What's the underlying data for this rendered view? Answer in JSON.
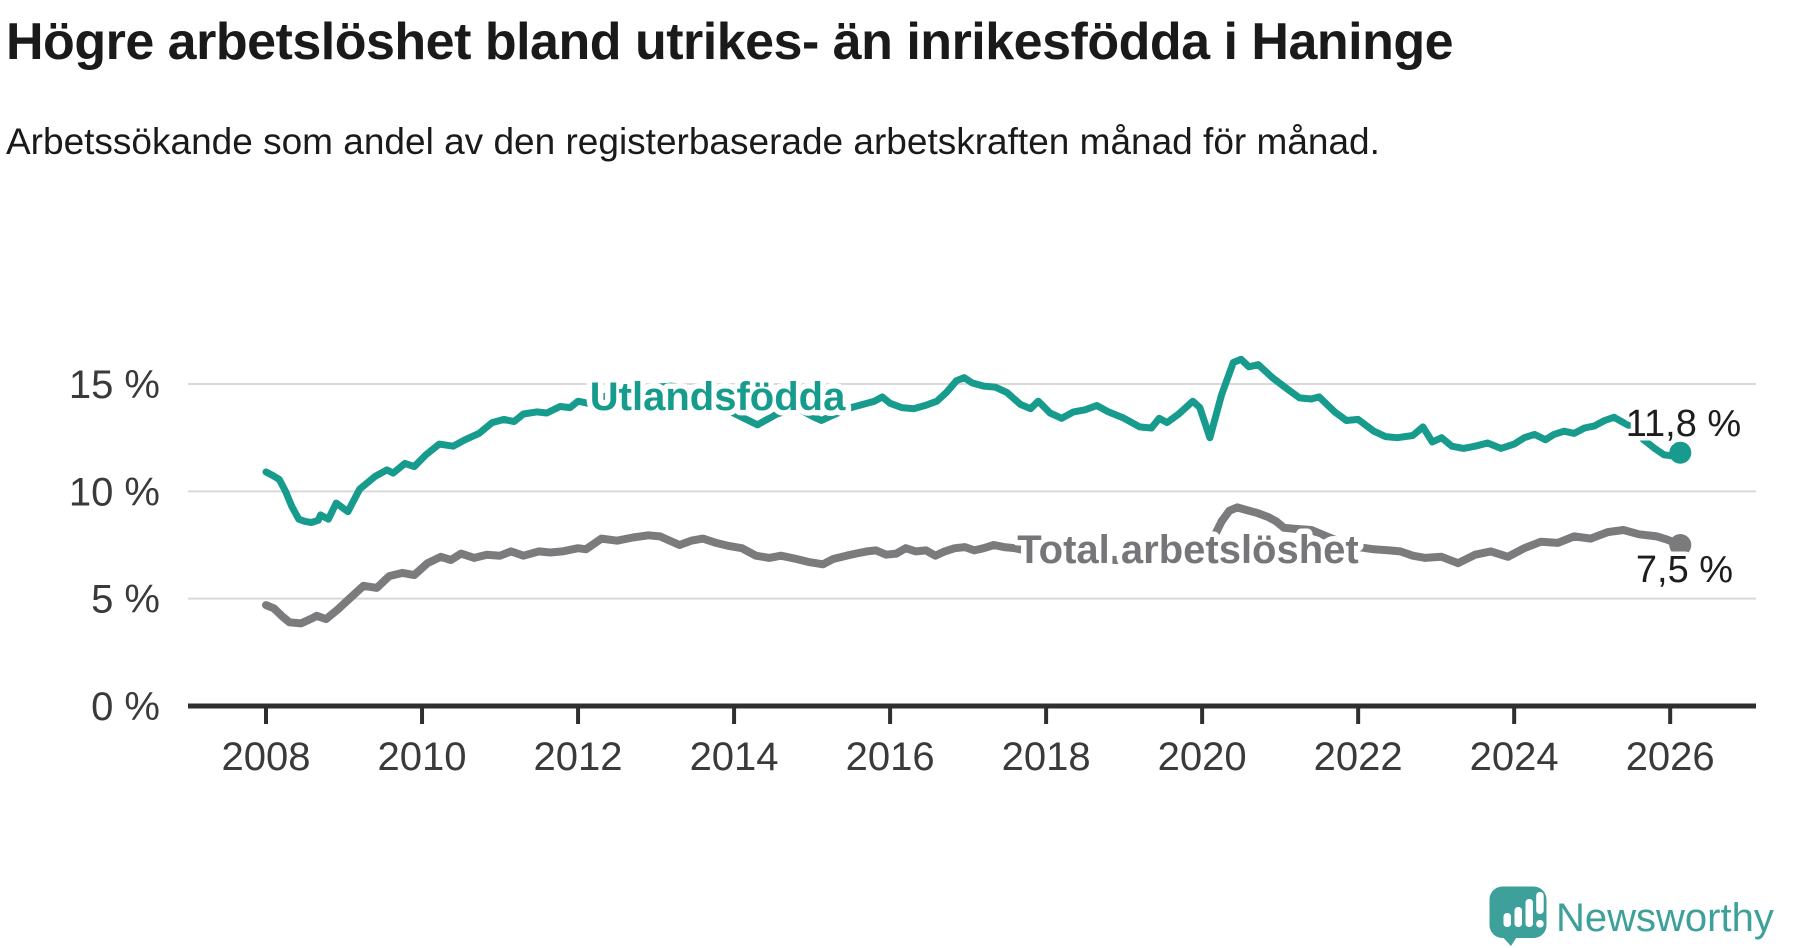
{
  "header": {
    "title": "Högre arbetslöshet bland utrikes- än inrikesfödda i Haninge",
    "subtitle": "Arbetssökande som andel av den registerbaserade arbetskraften månad för månad."
  },
  "chart_data": {
    "type": "line",
    "title": "Högre arbetslöshet bland utrikes- än inrikesfödda i Haninge",
    "subtitle": "Arbetssökande som andel av den registerbaserade arbetskraften månad för månad.",
    "unit": "%",
    "grid": true,
    "legend_position": "inline-labels",
    "xlim": [
      2007.0,
      2027.1
    ],
    "ylim": [
      0,
      17.5
    ],
    "x_ticks": [
      {
        "value": 2008,
        "label": "2008"
      },
      {
        "value": 2010,
        "label": "2010"
      },
      {
        "value": 2012,
        "label": "2012"
      },
      {
        "value": 2014,
        "label": "2014"
      },
      {
        "value": 2016,
        "label": "2016"
      },
      {
        "value": 2018,
        "label": "2018"
      },
      {
        "value": 2020,
        "label": "2020"
      },
      {
        "value": 2022,
        "label": "2022"
      },
      {
        "value": 2024,
        "label": "2024"
      },
      {
        "value": 2026,
        "label": "2026"
      }
    ],
    "y_ticks": [
      {
        "value": 0,
        "label": "0 %"
      },
      {
        "value": 5,
        "label": "5 %"
      },
      {
        "value": 10,
        "label": "10 %"
      },
      {
        "value": 15,
        "label": "15 %"
      }
    ],
    "series": [
      {
        "name": "Utlandsfödda",
        "label": "Utlandsfödda",
        "color": "#169b8d",
        "label_color": "#169b8d",
        "width": 7,
        "label_pos": [
          2012.15,
          13.79
        ],
        "end_label": "11,8 %",
        "end_label_pos": [
          2025.43,
          12.58
        ],
        "last_value": 11.8,
        "points": [
          [
            2008.0,
            10.9
          ],
          [
            2008.08,
            10.75
          ],
          [
            2008.17,
            10.55
          ],
          [
            2008.25,
            10.0
          ],
          [
            2008.33,
            9.3
          ],
          [
            2008.42,
            8.7
          ],
          [
            2008.5,
            8.6
          ],
          [
            2008.58,
            8.55
          ],
          [
            2008.67,
            8.65
          ],
          [
            2008.7,
            8.9
          ],
          [
            2008.8,
            8.7
          ],
          [
            2008.9,
            9.45
          ],
          [
            2009.05,
            9.05
          ],
          [
            2009.2,
            10.1
          ],
          [
            2009.4,
            10.7
          ],
          [
            2009.55,
            11.0
          ],
          [
            2009.63,
            10.85
          ],
          [
            2009.78,
            11.3
          ],
          [
            2009.9,
            11.15
          ],
          [
            2010.05,
            11.7
          ],
          [
            2010.22,
            12.2
          ],
          [
            2010.4,
            12.1
          ],
          [
            2010.55,
            12.4
          ],
          [
            2010.73,
            12.7
          ],
          [
            2010.9,
            13.2
          ],
          [
            2011.05,
            13.35
          ],
          [
            2011.18,
            13.25
          ],
          [
            2011.3,
            13.6
          ],
          [
            2011.47,
            13.7
          ],
          [
            2011.6,
            13.65
          ],
          [
            2011.77,
            13.95
          ],
          [
            2011.9,
            13.9
          ],
          [
            2012.0,
            14.2
          ],
          [
            2012.13,
            14.1
          ],
          [
            2012.3,
            14.4
          ],
          [
            2012.47,
            14.5
          ],
          [
            2012.64,
            14.65
          ],
          [
            2012.8,
            14.75
          ],
          [
            2013.0,
            14.85
          ],
          [
            2013.2,
            14.9
          ],
          [
            2013.5,
            14.55
          ],
          [
            2013.8,
            14.0
          ],
          [
            2014.1,
            13.45
          ],
          [
            2014.3,
            13.1
          ],
          [
            2014.55,
            13.6
          ],
          [
            2014.8,
            13.9
          ],
          [
            2015.0,
            13.5
          ],
          [
            2015.12,
            13.3
          ],
          [
            2015.3,
            13.6
          ],
          [
            2015.5,
            13.9
          ],
          [
            2015.8,
            14.2
          ],
          [
            2015.9,
            14.4
          ],
          [
            2016.0,
            14.1
          ],
          [
            2016.15,
            13.9
          ],
          [
            2016.3,
            13.85
          ],
          [
            2016.45,
            14.0
          ],
          [
            2016.6,
            14.2
          ],
          [
            2016.72,
            14.6
          ],
          [
            2016.85,
            15.15
          ],
          [
            2016.95,
            15.3
          ],
          [
            2017.05,
            15.05
          ],
          [
            2017.2,
            14.9
          ],
          [
            2017.35,
            14.85
          ],
          [
            2017.5,
            14.6
          ],
          [
            2017.67,
            14.05
          ],
          [
            2017.8,
            13.85
          ],
          [
            2017.9,
            14.2
          ],
          [
            2018.05,
            13.65
          ],
          [
            2018.2,
            13.4
          ],
          [
            2018.35,
            13.7
          ],
          [
            2018.5,
            13.8
          ],
          [
            2018.65,
            14.0
          ],
          [
            2018.8,
            13.7
          ],
          [
            2019.0,
            13.4
          ],
          [
            2019.2,
            13.0
          ],
          [
            2019.35,
            12.95
          ],
          [
            2019.45,
            13.4
          ],
          [
            2019.55,
            13.2
          ],
          [
            2019.7,
            13.6
          ],
          [
            2019.88,
            14.2
          ],
          [
            2019.97,
            13.9
          ],
          [
            2020.1,
            12.5
          ],
          [
            2020.25,
            14.5
          ],
          [
            2020.4,
            16.0
          ],
          [
            2020.5,
            16.15
          ],
          [
            2020.6,
            15.8
          ],
          [
            2020.72,
            15.9
          ],
          [
            2020.9,
            15.3
          ],
          [
            2021.1,
            14.75
          ],
          [
            2021.25,
            14.35
          ],
          [
            2021.4,
            14.3
          ],
          [
            2021.5,
            14.4
          ],
          [
            2021.7,
            13.7
          ],
          [
            2021.85,
            13.3
          ],
          [
            2022.0,
            13.35
          ],
          [
            2022.2,
            12.8
          ],
          [
            2022.35,
            12.55
          ],
          [
            2022.5,
            12.5
          ],
          [
            2022.7,
            12.6
          ],
          [
            2022.83,
            13.0
          ],
          [
            2022.95,
            12.3
          ],
          [
            2023.07,
            12.5
          ],
          [
            2023.2,
            12.1
          ],
          [
            2023.35,
            12.0
          ],
          [
            2023.5,
            12.1
          ],
          [
            2023.66,
            12.25
          ],
          [
            2023.83,
            12.0
          ],
          [
            2024.0,
            12.2
          ],
          [
            2024.13,
            12.5
          ],
          [
            2024.26,
            12.65
          ],
          [
            2024.4,
            12.4
          ],
          [
            2024.51,
            12.65
          ],
          [
            2024.64,
            12.8
          ],
          [
            2024.77,
            12.7
          ],
          [
            2024.9,
            12.95
          ],
          [
            2025.03,
            13.05
          ],
          [
            2025.16,
            13.3
          ],
          [
            2025.28,
            13.45
          ],
          [
            2025.4,
            13.2
          ],
          [
            2025.53,
            12.95
          ],
          [
            2025.66,
            12.4
          ],
          [
            2025.8,
            12.0
          ],
          [
            2025.92,
            11.7
          ],
          [
            2026.03,
            11.65
          ],
          [
            2026.13,
            11.8
          ]
        ]
      },
      {
        "name": "Total arbetslöshet",
        "label": "Total arbetslöshet",
        "color": "#7b7b7d",
        "label_color": "#76767a",
        "width": 8,
        "label_pos": [
          2017.63,
          6.66
        ],
        "end_label": "7,5 %",
        "end_label_pos": [
          2025.56,
          5.78
        ],
        "last_value": 7.5,
        "points": [
          [
            2008.0,
            4.7
          ],
          [
            2008.1,
            4.55
          ],
          [
            2008.2,
            4.2
          ],
          [
            2008.3,
            3.9
          ],
          [
            2008.45,
            3.85
          ],
          [
            2008.6,
            4.1
          ],
          [
            2008.65,
            4.2
          ],
          [
            2008.77,
            4.05
          ],
          [
            2008.92,
            4.5
          ],
          [
            2009.1,
            5.1
          ],
          [
            2009.25,
            5.6
          ],
          [
            2009.42,
            5.5
          ],
          [
            2009.58,
            6.05
          ],
          [
            2009.75,
            6.2
          ],
          [
            2009.9,
            6.1
          ],
          [
            2010.07,
            6.65
          ],
          [
            2010.24,
            6.95
          ],
          [
            2010.37,
            6.8
          ],
          [
            2010.5,
            7.1
          ],
          [
            2010.67,
            6.9
          ],
          [
            2010.83,
            7.05
          ],
          [
            2011.0,
            7.0
          ],
          [
            2011.14,
            7.2
          ],
          [
            2011.3,
            7.0
          ],
          [
            2011.5,
            7.2
          ],
          [
            2011.64,
            7.15
          ],
          [
            2011.8,
            7.2
          ],
          [
            2012.0,
            7.35
          ],
          [
            2012.1,
            7.3
          ],
          [
            2012.3,
            7.8
          ],
          [
            2012.5,
            7.7
          ],
          [
            2012.7,
            7.85
          ],
          [
            2012.9,
            7.95
          ],
          [
            2013.05,
            7.9
          ],
          [
            2013.3,
            7.5
          ],
          [
            2013.45,
            7.7
          ],
          [
            2013.6,
            7.8
          ],
          [
            2013.77,
            7.6
          ],
          [
            2013.94,
            7.45
          ],
          [
            2014.1,
            7.35
          ],
          [
            2014.28,
            7.0
          ],
          [
            2014.45,
            6.9
          ],
          [
            2014.6,
            7.0
          ],
          [
            2014.8,
            6.85
          ],
          [
            2014.97,
            6.7
          ],
          [
            2015.14,
            6.6
          ],
          [
            2015.27,
            6.85
          ],
          [
            2015.44,
            7.0
          ],
          [
            2015.56,
            7.1
          ],
          [
            2015.7,
            7.2
          ],
          [
            2015.82,
            7.25
          ],
          [
            2015.95,
            7.05
          ],
          [
            2016.08,
            7.1
          ],
          [
            2016.2,
            7.35
          ],
          [
            2016.33,
            7.2
          ],
          [
            2016.46,
            7.25
          ],
          [
            2016.58,
            7.0
          ],
          [
            2016.7,
            7.2
          ],
          [
            2016.83,
            7.35
          ],
          [
            2016.96,
            7.4
          ],
          [
            2017.08,
            7.25
          ],
          [
            2017.2,
            7.35
          ],
          [
            2017.33,
            7.5
          ],
          [
            2017.46,
            7.4
          ],
          [
            2017.6,
            7.35
          ],
          [
            2017.8,
            7.2
          ],
          [
            2018.0,
            7.1
          ],
          [
            2018.3,
            6.95
          ],
          [
            2018.6,
            6.85
          ],
          [
            2018.9,
            6.8
          ],
          [
            2019.2,
            6.85
          ],
          [
            2019.5,
            6.9
          ],
          [
            2019.75,
            7.0
          ],
          [
            2019.95,
            7.1
          ],
          [
            2020.1,
            7.5
          ],
          [
            2020.25,
            8.6
          ],
          [
            2020.35,
            9.1
          ],
          [
            2020.45,
            9.25
          ],
          [
            2020.55,
            9.15
          ],
          [
            2020.7,
            9.0
          ],
          [
            2020.85,
            8.8
          ],
          [
            2020.95,
            8.6
          ],
          [
            2021.05,
            8.3
          ],
          [
            2021.2,
            8.25
          ],
          [
            2021.4,
            8.2
          ],
          [
            2021.6,
            7.9
          ],
          [
            2021.8,
            7.6
          ],
          [
            2022.0,
            7.4
          ],
          [
            2022.2,
            7.3
          ],
          [
            2022.4,
            7.25
          ],
          [
            2022.54,
            7.2
          ],
          [
            2022.7,
            7.0
          ],
          [
            2022.86,
            6.9
          ],
          [
            2023.07,
            6.95
          ],
          [
            2023.28,
            6.65
          ],
          [
            2023.5,
            7.05
          ],
          [
            2023.7,
            7.2
          ],
          [
            2023.92,
            6.95
          ],
          [
            2024.13,
            7.35
          ],
          [
            2024.34,
            7.65
          ],
          [
            2024.56,
            7.6
          ],
          [
            2024.77,
            7.9
          ],
          [
            2024.98,
            7.8
          ],
          [
            2025.2,
            8.1
          ],
          [
            2025.4,
            8.2
          ],
          [
            2025.6,
            8.0
          ],
          [
            2025.83,
            7.9
          ],
          [
            2025.96,
            7.75
          ],
          [
            2026.13,
            7.5
          ]
        ]
      }
    ]
  },
  "footer": {
    "brand": "Newsworthy",
    "logo_color": "#3da09a"
  }
}
